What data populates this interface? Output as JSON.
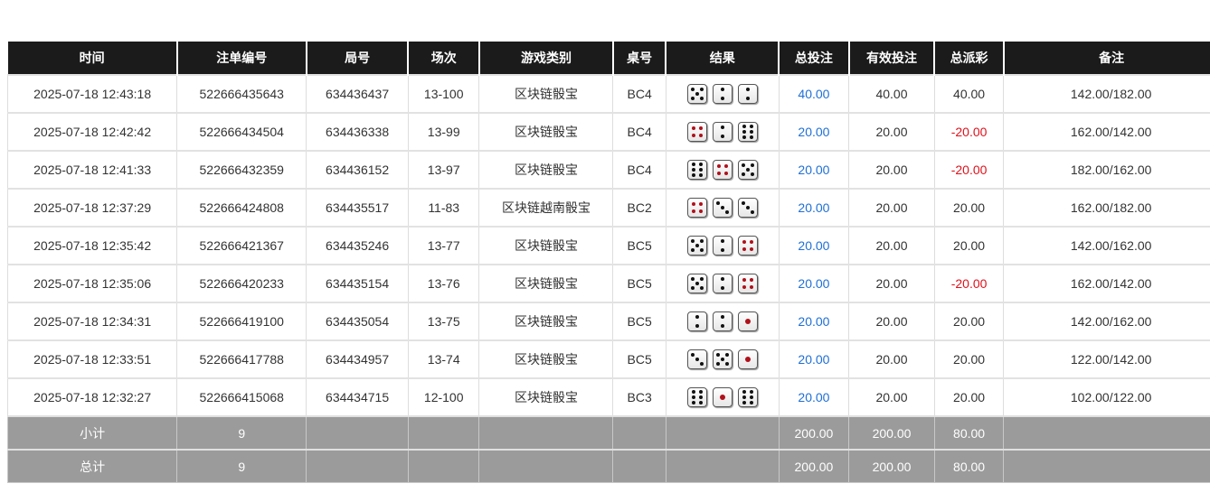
{
  "headers": [
    "时间",
    "注单编号",
    "局号",
    "场次",
    "游戏类别",
    "桌号",
    "结果",
    "总投注",
    "有效投注",
    "总派彩",
    "备注"
  ],
  "rows": [
    {
      "time": "2025-07-18 12:43:18",
      "bet_id": "522666435643",
      "round": "634436437",
      "session": "13-100",
      "game": "区块链骰宝",
      "table": "BC4",
      "dice": [
        5,
        2,
        2
      ],
      "total_bet": "40.00",
      "valid_bet": "40.00",
      "payout": "40.00",
      "payout_negative": false,
      "note": "142.00/182.00",
      "bet_blue": true
    },
    {
      "time": "2025-07-18 12:42:42",
      "bet_id": "522666434504",
      "round": "634436338",
      "session": "13-99",
      "game": "区块链骰宝",
      "table": "BC4",
      "dice": [
        4,
        2,
        6
      ],
      "total_bet": "20.00",
      "valid_bet": "20.00",
      "payout": "-20.00",
      "payout_negative": true,
      "note": "162.00/142.00"
    },
    {
      "time": "2025-07-18 12:41:33",
      "bet_id": "522666432359",
      "round": "634436152",
      "session": "13-97",
      "game": "区块链骰宝",
      "table": "BC4",
      "dice": [
        6,
        4,
        5
      ],
      "total_bet": "20.00",
      "valid_bet": "20.00",
      "payout": "-20.00",
      "payout_negative": true,
      "note": "182.00/162.00"
    },
    {
      "time": "2025-07-18 12:37:29",
      "bet_id": "522666424808",
      "round": "634435517",
      "session": "11-83",
      "game": "区块链越南骰宝",
      "table": "BC2",
      "dice": [
        4,
        3,
        3
      ],
      "total_bet": "20.00",
      "valid_bet": "20.00",
      "payout": "20.00",
      "payout_negative": false,
      "note": "162.00/182.00"
    },
    {
      "time": "2025-07-18 12:35:42",
      "bet_id": "522666421367",
      "round": "634435246",
      "session": "13-77",
      "game": "区块链骰宝",
      "table": "BC5",
      "dice": [
        5,
        2,
        4
      ],
      "total_bet": "20.00",
      "valid_bet": "20.00",
      "payout": "20.00",
      "payout_negative": false,
      "note": "142.00/162.00"
    },
    {
      "time": "2025-07-18 12:35:06",
      "bet_id": "522666420233",
      "round": "634435154",
      "session": "13-76",
      "game": "区块链骰宝",
      "table": "BC5",
      "dice": [
        5,
        2,
        4
      ],
      "total_bet": "20.00",
      "valid_bet": "20.00",
      "payout": "-20.00",
      "payout_negative": true,
      "note": "162.00/142.00"
    },
    {
      "time": "2025-07-18 12:34:31",
      "bet_id": "522666419100",
      "round": "634435054",
      "session": "13-75",
      "game": "区块链骰宝",
      "table": "BC5",
      "dice": [
        2,
        2,
        1
      ],
      "total_bet": "20.00",
      "valid_bet": "20.00",
      "payout": "20.00",
      "payout_negative": false,
      "note": "142.00/162.00"
    },
    {
      "time": "2025-07-18 12:33:51",
      "bet_id": "522666417788",
      "round": "634434957",
      "session": "13-74",
      "game": "区块链骰宝",
      "table": "BC5",
      "dice": [
        3,
        5,
        1
      ],
      "total_bet": "20.00",
      "valid_bet": "20.00",
      "payout": "20.00",
      "payout_negative": false,
      "note": "122.00/142.00"
    },
    {
      "time": "2025-07-18 12:32:27",
      "bet_id": "522666415068",
      "round": "634434715",
      "session": "12-100",
      "game": "区块链骰宝",
      "table": "BC3",
      "dice": [
        6,
        1,
        6
      ],
      "total_bet": "20.00",
      "valid_bet": "20.00",
      "payout": "20.00",
      "payout_negative": false,
      "note": "102.00/122.00"
    }
  ],
  "subtotal": {
    "label": "小计",
    "count": "9",
    "total_bet": "200.00",
    "valid_bet": "200.00",
    "payout": "80.00"
  },
  "total": {
    "label": "总计",
    "count": "9",
    "total_bet": "200.00",
    "valid_bet": "200.00",
    "payout": "80.00"
  },
  "colors": {
    "header_bg": "#1b1b1b",
    "footer_bg": "#9b9b9b",
    "bet_blue": "#1e6fd6",
    "negative_red": "#e0101a"
  }
}
